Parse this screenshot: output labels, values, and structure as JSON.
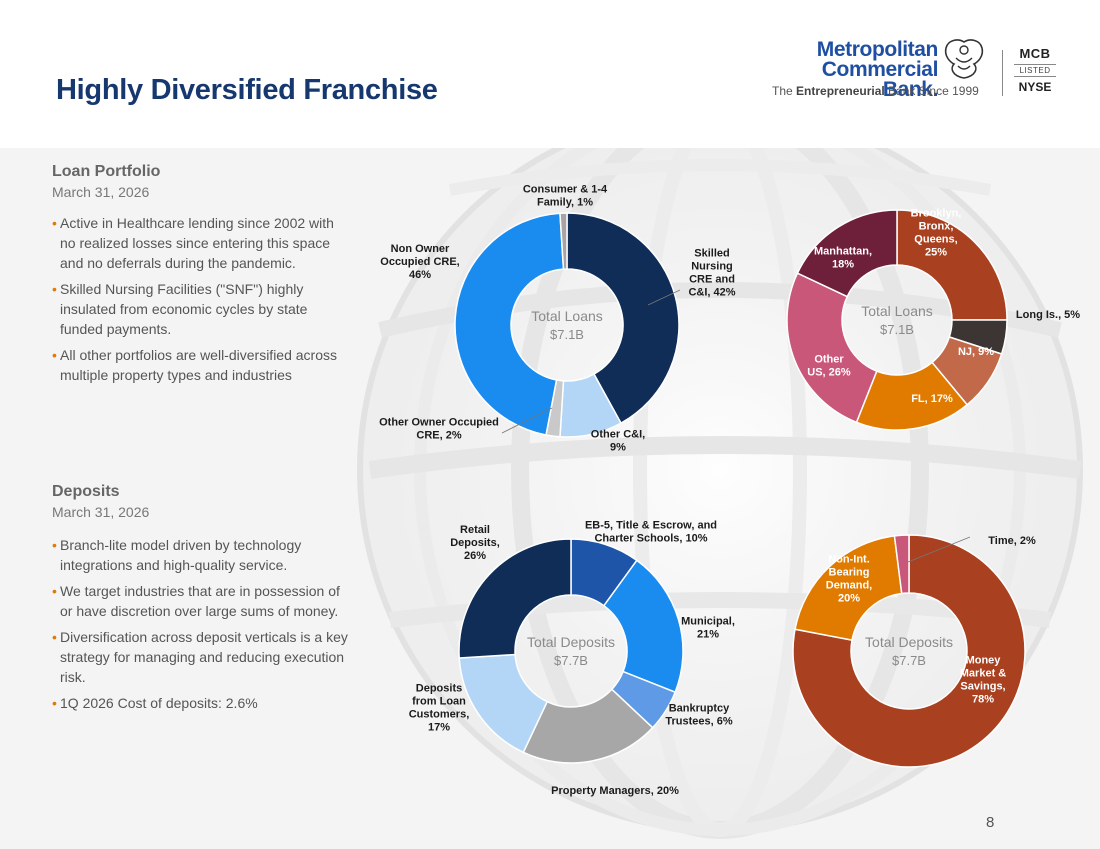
{
  "header": {
    "title": "Highly Diversified Franchise",
    "logo_line1": "Metropolitan",
    "logo_line2": "Commercial Bank.",
    "tagline_pre": "The ",
    "tagline_bold": "Entrepreneurial",
    "tagline_post": " Bank Since 1999",
    "ticker": "MCB",
    "listed": "LISTED",
    "exchange": "NYSE"
  },
  "loans": {
    "title": "Loan Portfolio",
    "date": "March 31, 2026",
    "bullets": [
      "Active in Healthcare lending since 2002 with no realized losses since entering this space and no deferrals during the pandemic.",
      "Skilled Nursing Facilities (\"SNF\") highly insulated from economic cycles by state funded payments.",
      "All other portfolios are well-diversified across multiple property types and industries"
    ]
  },
  "deposits": {
    "title": "Deposits",
    "date": "March 31, 2026",
    "bullets": [
      "Branch-lite model driven by technology integrations and high-quality service.",
      "We target industries that are in possession of or have discretion over large sums of money.",
      "Diversification across deposit verticals is a key strategy for managing and reducing execution risk.",
      "1Q 2026 Cost of deposits: 2.6%"
    ]
  },
  "page_number": "8",
  "chart_data": [
    {
      "type": "pie",
      "center_label": "Total Loans",
      "center_value": "$7.1B",
      "slices": [
        {
          "label": "Skilled Nursing CRE and C&I, 42%",
          "lines": [
            "Skilled",
            "Nursing",
            "CRE and",
            "C&I, 42%"
          ],
          "value": 42,
          "color": "#0f2d56",
          "label_color": "#1b1b1b"
        },
        {
          "label": "Other C&I, 9%",
          "lines": [
            "Other C&I,",
            "9%"
          ],
          "value": 9,
          "color": "#b3d6f7",
          "label_color": "#1b1b1b"
        },
        {
          "label": "Other Owner Occupied CRE, 2%",
          "lines": [
            "Other Owner Occupied",
            "CRE, 2%"
          ],
          "value": 2,
          "color": "#c9c9c9",
          "label_color": "#1b1b1b"
        },
        {
          "label": "Non Owner Occupied CRE, 46%",
          "lines": [
            "Non Owner",
            "Occupied CRE,",
            "46%"
          ],
          "value": 46,
          "color": "#1a8cf0",
          "label_color": "#1b1b1b"
        },
        {
          "label": "Consumer & 1-4 Family, 1%",
          "lines": [
            "Consumer & 1-4",
            "Family, 1%"
          ],
          "value": 1,
          "color": "#a9a4a4",
          "label_color": "#1b1b1b"
        }
      ]
    },
    {
      "type": "pie",
      "center_label": "Total Loans",
      "center_value": "$7.1B",
      "slices": [
        {
          "label": "Brooklyn, Bronx, Queens, 25%",
          "lines": [
            "Brooklyn,",
            "Bronx,",
            "Queens,",
            "25%"
          ],
          "value": 25,
          "color": "#a9401f",
          "label_color": "#ffffff"
        },
        {
          "label": "Long Is., 5%",
          "lines": [
            "Long Is., 5%"
          ],
          "value": 5,
          "color": "#3d3434",
          "label_color": "#1b1b1b"
        },
        {
          "label": "NJ, 9%",
          "lines": [
            "NJ, 9%"
          ],
          "value": 9,
          "color": "#c2694a",
          "label_color": "#ffffff"
        },
        {
          "label": "FL, 17%",
          "lines": [
            "FL, 17%"
          ],
          "value": 17,
          "color": "#e07b00",
          "label_color": "#ffffff"
        },
        {
          "label": "Other US, 26%",
          "lines": [
            "Other",
            "US, 26%"
          ],
          "value": 26,
          "color": "#c9577a",
          "label_color": "#ffffff"
        },
        {
          "label": "Manhattan, 18%",
          "lines": [
            "Manhattan,",
            "18%"
          ],
          "value": 18,
          "color": "#6e1f3a",
          "label_color": "#ffffff"
        }
      ]
    },
    {
      "type": "pie",
      "center_label": "Total Deposits",
      "center_value": "$7.7B",
      "slices": [
        {
          "label": "EB-5, Title & Escrow, and Charter Schools, 10%",
          "lines": [
            "EB-5, Title & Escrow, and",
            "Charter Schools, 10%"
          ],
          "value": 10,
          "color": "#1f55a8",
          "label_color": "#1b1b1b"
        },
        {
          "label": "Municipal, 21%",
          "lines": [
            "Municipal,",
            "21%"
          ],
          "value": 21,
          "color": "#1a8cf0",
          "label_color": "#1b1b1b"
        },
        {
          "label": "Bankruptcy Trustees, 6%",
          "lines": [
            "Bankruptcy",
            "Trustees, 6%"
          ],
          "value": 6,
          "color": "#5f9ae6",
          "label_color": "#1b1b1b"
        },
        {
          "label": "Property Managers, 20%",
          "lines": [
            "Property Managers, 20%"
          ],
          "value": 20,
          "color": "#a7a7a7",
          "label_color": "#1b1b1b"
        },
        {
          "label": "Deposits from Loan Customers, 17%",
          "lines": [
            "Deposits",
            "from Loan",
            "Customers,",
            "17%"
          ],
          "value": 17,
          "color": "#b3d6f7",
          "label_color": "#1b1b1b"
        },
        {
          "label": "Retail Deposits, 26%",
          "lines": [
            "Retail",
            "Deposits,",
            "26%"
          ],
          "value": 26,
          "color": "#0f2d56",
          "label_color": "#1b1b1b"
        }
      ]
    },
    {
      "type": "pie",
      "center_label": "Total Deposits",
      "center_value": "$7.7B",
      "slices": [
        {
          "label": "Money Market & Savings, 78%",
          "lines": [
            "Money",
            "Market &",
            "Savings,",
            "78%"
          ],
          "value": 78,
          "color": "#a9401f",
          "label_color": "#ffffff"
        },
        {
          "label": "Non-Int. Bearing Demand, 20%",
          "lines": [
            "Non-Int.",
            "Bearing",
            "Demand,",
            "20%"
          ],
          "value": 20,
          "color": "#e07b00",
          "label_color": "#ffffff"
        },
        {
          "label": "Time, 2%",
          "lines": [
            "Time, 2%"
          ],
          "value": 2,
          "color": "#c9577a",
          "label_color": "#1b1b1b"
        }
      ]
    }
  ]
}
